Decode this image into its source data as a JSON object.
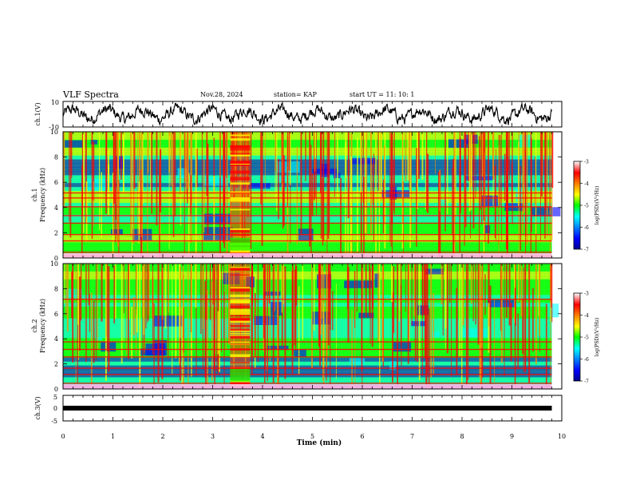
{
  "header": {
    "title": "VLF Spectra",
    "date": "Nov.28, 2024",
    "station": "station= KAP",
    "start": "start  UT =   11: 10: 1"
  },
  "chart_data": [
    {
      "type": "line",
      "panel": "ch1-waveform",
      "ylabel": "ch.1(V)",
      "ylim": [
        -10,
        10
      ],
      "yticks": [
        "10",
        "-10"
      ],
      "xlim": [
        0,
        10
      ],
      "trace_end_min": 9.8,
      "series": [
        {
          "color": "#000000"
        }
      ]
    },
    {
      "type": "heatmap",
      "panel": "ch1-spectrogram",
      "ylabel": "ch.1\nFrequency (kHz)",
      "xlim": [
        0,
        10
      ],
      "ylim": [
        0,
        10
      ],
      "yticks": [
        "0",
        "2",
        "4",
        "6",
        "8",
        "10"
      ],
      "data_end_min": 9.8,
      "burst_min": [
        3.35,
        3.75
      ],
      "colorbar": {
        "label": "log(PSD)(V²/Hz)",
        "range": [
          -7,
          -3
        ],
        "ticks": [
          "-3",
          "-4",
          "-5",
          "-6",
          "-7"
        ]
      }
    },
    {
      "type": "heatmap",
      "panel": "ch2-spectrogram",
      "ylabel": "ch.2\nFrequency (kHz)",
      "xlim": [
        0,
        10
      ],
      "ylim": [
        0,
        10
      ],
      "yticks": [
        "0",
        "2",
        "4",
        "6",
        "8",
        "10"
      ],
      "data_end_min": 9.8,
      "burst_min": [
        3.35,
        3.75
      ],
      "colorbar": {
        "label": "log(PSD)(V²/Hz)",
        "range": [
          -7,
          -3
        ],
        "ticks": [
          "-3",
          "-4",
          "-5",
          "-6",
          "-7"
        ]
      }
    },
    {
      "type": "line",
      "panel": "ch3-waveform",
      "ylabel": "ch.3(V)",
      "ylim": [
        -5,
        5
      ],
      "yticks": [
        "5",
        "0",
        "-5"
      ],
      "xlim": [
        0,
        10
      ],
      "xlabel": "Time (min)",
      "xticks": [
        "0",
        "1",
        "2",
        "3",
        "4",
        "5",
        "6",
        "7",
        "8",
        "9",
        "10"
      ],
      "trace_end_min": 9.8,
      "series": [
        {
          "color": "#000000",
          "level": 0
        }
      ]
    }
  ],
  "colors": {
    "jet": [
      "#00008f",
      "#0000ff",
      "#00ffff",
      "#00ff00",
      "#ffff00",
      "#ff0000",
      "#7f0000"
    ]
  }
}
